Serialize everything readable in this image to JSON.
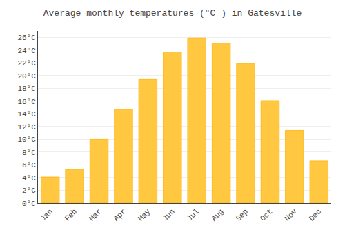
{
  "chart_data": {
    "type": "bar",
    "title": "Average monthly temperatures (°C ) in Gatesville",
    "categories": [
      "Jan",
      "Feb",
      "Mar",
      "Apr",
      "May",
      "Jun",
      "Jul",
      "Aug",
      "Sep",
      "Oct",
      "Nov",
      "Dec"
    ],
    "values": [
      4.1,
      5.3,
      10.0,
      14.7,
      19.4,
      23.7,
      25.9,
      25.1,
      21.9,
      16.1,
      11.4,
      6.6
    ],
    "color": "#FFC840",
    "ylim": [
      0,
      27
    ],
    "yticks": [
      {
        "value": 0,
        "label": "0°C"
      },
      {
        "value": 2,
        "label": "2°C"
      },
      {
        "value": 4,
        "label": "4°C"
      },
      {
        "value": 6,
        "label": "6°C"
      },
      {
        "value": 8,
        "label": "8°C"
      },
      {
        "value": 10,
        "label": "10°C"
      },
      {
        "value": 12,
        "label": "12°C"
      },
      {
        "value": 14,
        "label": "14°C"
      },
      {
        "value": 16,
        "label": "16°C"
      },
      {
        "value": 18,
        "label": "18°C"
      },
      {
        "value": 20,
        "label": "20°C"
      },
      {
        "value": 22,
        "label": "22°C"
      },
      {
        "value": 24,
        "label": "24°C"
      },
      {
        "value": 26,
        "label": "26°C"
      }
    ],
    "grid": true
  }
}
